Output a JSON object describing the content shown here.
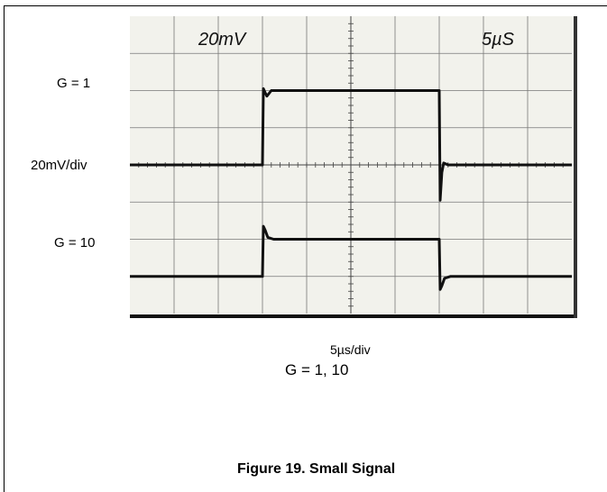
{
  "figure": {
    "caption": "Figure 19. Small Signal",
    "gains_label": "G = 1, 10"
  },
  "chart_data": {
    "type": "line",
    "title": "",
    "xlabel": "5µs/div",
    "ylabel": "20mV/div",
    "screen_annotations": {
      "vertical_scale": "20mV",
      "time_scale": "5µS"
    },
    "grid": true,
    "divisions": {
      "x": 10,
      "y": 8
    },
    "x_unit": "div",
    "y_unit": "div",
    "xlim": [
      0,
      10
    ],
    "ylim": [
      -4,
      4
    ],
    "series": [
      {
        "name": "G = 1",
        "x": [
          0,
          3.0,
          3.02,
          3.06,
          3.1,
          3.2,
          3.35,
          7.0,
          7.02,
          7.06,
          7.1,
          7.2,
          7.35,
          10
        ],
        "y": [
          0.0,
          0.0,
          2.05,
          1.95,
          1.85,
          2.0,
          2.0,
          2.0,
          -0.95,
          -0.2,
          0.05,
          0.0,
          0.0,
          0.0
        ]
      },
      {
        "name": "G = 10",
        "x": [
          0,
          3.0,
          3.02,
          3.06,
          3.12,
          3.25,
          3.4,
          7.0,
          7.02,
          7.06,
          7.12,
          7.25,
          7.4,
          10
        ],
        "y": [
          -3.0,
          -3.0,
          -1.65,
          -1.75,
          -1.95,
          -2.0,
          -2.0,
          -2.0,
          -3.35,
          -3.25,
          -3.05,
          -3.0,
          -3.0,
          -3.0
        ]
      }
    ]
  }
}
